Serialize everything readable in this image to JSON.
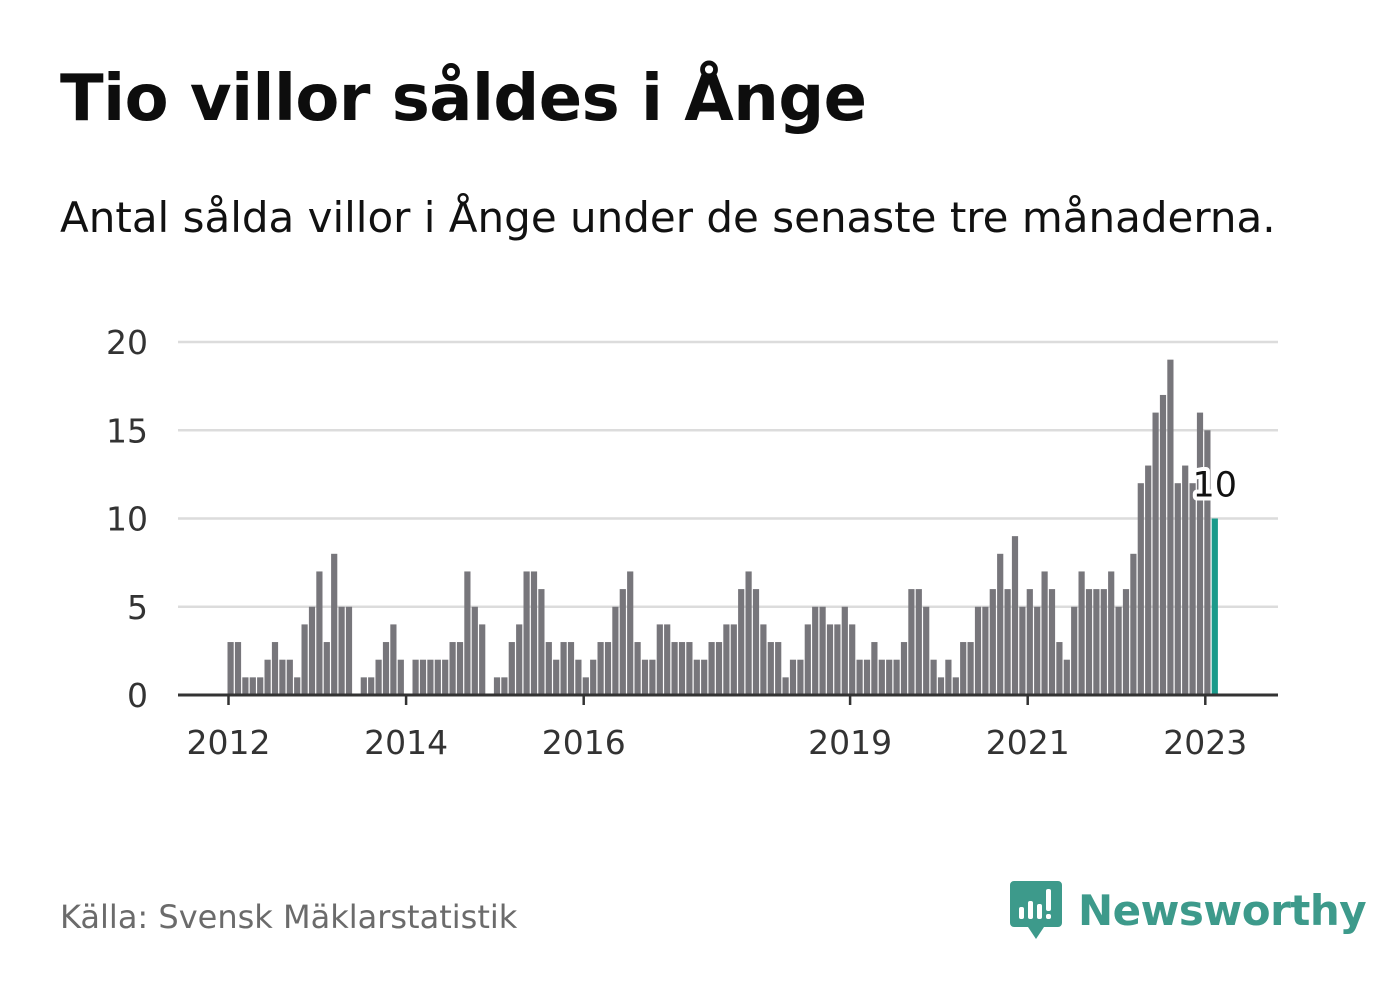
{
  "header": {
    "title": "Tio villor såldes i Ånge",
    "subtitle": "Antal sålda villor i Ånge under de senaste tre månaderna."
  },
  "footer": {
    "source": "Källa: Svensk Mäklarstatistik",
    "brand": "Newsworthy",
    "brand_icon": "bar-chart-speech-bubble-icon"
  },
  "colors": {
    "bar": "#77767b",
    "highlight": "#1a9a8a",
    "grid": "#dcdcdc",
    "axis": "#333333",
    "brand": "#3d9a8b"
  },
  "chart_data": {
    "type": "bar",
    "title": "Tio villor såldes i Ånge",
    "subtitle": "Antal sålda villor i Ånge under de senaste tre månaderna.",
    "xlabel": "",
    "ylabel": "",
    "ylim": [
      0,
      20
    ],
    "yticks": [
      0,
      5,
      10,
      15,
      20
    ],
    "xticks": [
      "2012",
      "2014",
      "2016",
      "2019",
      "2021",
      "2023"
    ],
    "grid": true,
    "x_start": "2012-01",
    "x_end": "2023-02",
    "highlight_label": "10",
    "values": [
      3,
      3,
      1,
      1,
      1,
      2,
      3,
      2,
      2,
      1,
      4,
      5,
      7,
      3,
      8,
      5,
      5,
      0,
      1,
      1,
      2,
      3,
      4,
      2,
      0,
      2,
      2,
      2,
      2,
      2,
      3,
      3,
      7,
      5,
      4,
      0,
      1,
      1,
      3,
      4,
      7,
      7,
      6,
      3,
      2,
      3,
      3,
      2,
      1,
      2,
      3,
      3,
      5,
      6,
      7,
      3,
      2,
      2,
      4,
      4,
      3,
      3,
      3,
      2,
      2,
      3,
      3,
      4,
      4,
      6,
      7,
      6,
      4,
      3,
      3,
      1,
      2,
      2,
      4,
      5,
      5,
      4,
      4,
      5,
      4,
      2,
      2,
      3,
      2,
      2,
      2,
      3,
      6,
      6,
      5,
      2,
      1,
      2,
      1,
      3,
      3,
      5,
      5,
      6,
      8,
      6,
      9,
      5,
      6,
      5,
      7,
      6,
      3,
      2,
      5,
      7,
      6,
      6,
      6,
      7,
      5,
      6,
      8,
      12,
      13,
      16,
      17,
      19,
      12,
      13,
      12,
      16,
      15,
      10
    ]
  }
}
